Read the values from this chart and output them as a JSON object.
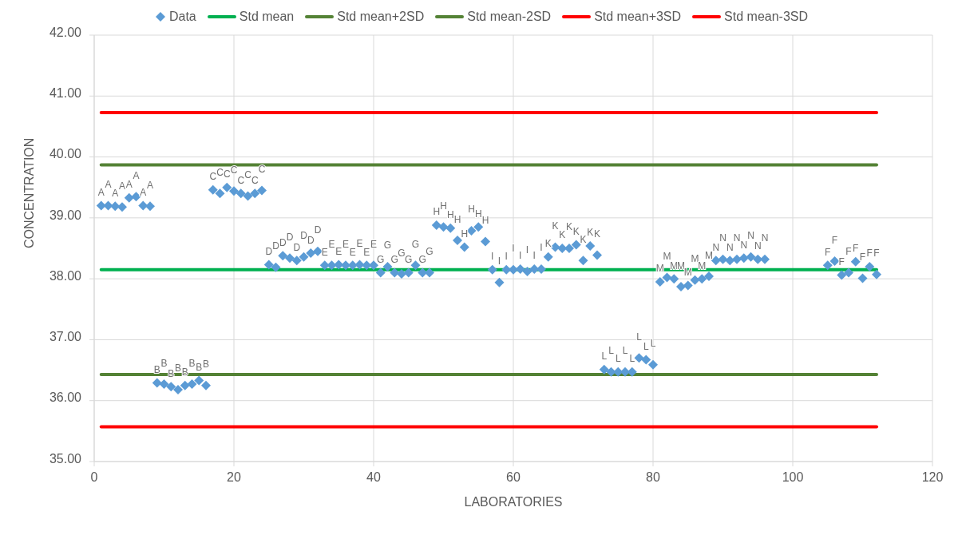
{
  "chart_data": {
    "type": "scatter",
    "xlabel": "LABORATORIES",
    "ylabel": "CONCENTRATION",
    "xlim": [
      0,
      120
    ],
    "xticks": [
      0,
      20,
      40,
      60,
      80,
      100,
      120
    ],
    "ylim": [
      35,
      42
    ],
    "yticks": [
      {
        "value": 35,
        "label": "35.00"
      },
      {
        "value": 36,
        "label": "36.00"
      },
      {
        "value": 37,
        "label": "37.00"
      },
      {
        "value": 38,
        "label": "38.00"
      },
      {
        "value": 39,
        "label": "39.00"
      },
      {
        "value": 40,
        "label": "40.00"
      },
      {
        "value": 41,
        "label": "41.00"
      },
      {
        "value": 42,
        "label": "42.00"
      }
    ],
    "grid": true,
    "legend": "top",
    "series": [
      {
        "name": "Data",
        "marker": "diamond",
        "color": "#5b9bd5",
        "x": [
          1,
          2,
          3,
          4,
          5,
          6,
          7,
          8,
          9,
          10,
          11,
          12,
          13,
          14,
          15,
          16,
          17,
          18,
          19,
          20,
          21,
          22,
          23,
          24,
          25,
          26,
          27,
          28,
          29,
          30,
          31,
          32,
          33,
          34,
          35,
          36,
          37,
          38,
          39,
          40,
          41,
          42,
          43,
          44,
          45,
          46,
          47,
          48,
          49,
          50,
          51,
          52,
          53,
          54,
          55,
          56,
          57,
          58,
          59,
          60,
          61,
          62,
          63,
          64,
          65,
          66,
          67,
          68,
          69,
          70,
          71,
          72,
          73,
          74,
          75,
          76,
          77,
          78,
          79,
          80,
          81,
          82,
          83,
          84,
          85,
          86,
          87,
          88,
          89,
          90,
          91,
          92,
          93,
          94,
          95,
          96,
          105,
          106,
          107,
          108,
          109,
          110,
          111,
          112
        ],
        "values": [
          39.2,
          39.2,
          39.19,
          39.18,
          39.33,
          39.35,
          39.2,
          39.19,
          36.29,
          36.27,
          36.23,
          36.18,
          36.25,
          36.27,
          36.33,
          36.25,
          39.46,
          39.4,
          39.5,
          39.44,
          39.4,
          39.36,
          39.4,
          39.45,
          38.23,
          38.19,
          38.38,
          38.34,
          38.3,
          38.36,
          38.42,
          38.45,
          38.22,
          38.22,
          38.23,
          38.22,
          38.22,
          38.23,
          38.22,
          38.22,
          38.1,
          38.2,
          38.1,
          38.08,
          38.1,
          38.22,
          38.1,
          38.1,
          38.88,
          38.85,
          38.83,
          38.63,
          38.52,
          38.79,
          38.85,
          38.61,
          38.15,
          37.94,
          38.15,
          38.15,
          38.16,
          38.12,
          38.16,
          38.16,
          38.36,
          38.52,
          38.5,
          38.5,
          38.56,
          38.3,
          38.54,
          38.39,
          36.51,
          36.47,
          36.47,
          36.47,
          36.47,
          36.7,
          36.67,
          36.59,
          37.95,
          38.02,
          38.0,
          37.87,
          37.89,
          37.98,
          38.0,
          38.04,
          38.3,
          38.32,
          38.3,
          38.32,
          38.34,
          38.36,
          38.32,
          38.32,
          38.22,
          38.29,
          38.06,
          38.1,
          38.28,
          38.01,
          38.2,
          38.07
        ],
        "value_labels": [
          "A",
          "A",
          "A",
          "A",
          "A",
          "A",
          "A",
          "A",
          "B",
          "B",
          "B",
          "B",
          "B",
          "B",
          "B",
          "B",
          "C",
          "C",
          "C",
          "C",
          "C",
          "C",
          "C",
          "C",
          "D",
          "D",
          "D",
          "D",
          "D",
          "D",
          "D",
          "D",
          "E",
          "E",
          "E",
          "E",
          "E",
          "E",
          "E",
          "E",
          "G",
          "G",
          "G",
          "G",
          "G",
          "G",
          "G",
          "G",
          "H",
          "H",
          "H",
          "H",
          "H",
          "H",
          "H",
          "H",
          "I",
          "I",
          "I",
          "I",
          "I",
          "I",
          "I",
          "I",
          "K",
          "K",
          "K",
          "K",
          "K",
          "K",
          "K",
          "K",
          "L",
          "L",
          "L",
          "L",
          "L",
          "L",
          "L",
          "L",
          "M",
          "M",
          "M",
          "M",
          "M",
          "M",
          "M",
          "M",
          "N",
          "N",
          "N",
          "N",
          "N",
          "N",
          "N",
          "N",
          "F",
          "F",
          "F",
          "F",
          "F",
          "F",
          "F",
          "F"
        ]
      },
      {
        "name": "Std mean",
        "type": "line",
        "color": "#00b050",
        "x": [
          1,
          112
        ],
        "values": [
          38.15,
          38.15
        ]
      },
      {
        "name": "Std mean+2SD",
        "type": "line",
        "color": "#548235",
        "x": [
          1,
          112
        ],
        "values": [
          39.87,
          39.87
        ]
      },
      {
        "name": "Std mean-2SD",
        "type": "line",
        "color": "#548235",
        "x": [
          1,
          112
        ],
        "values": [
          36.43,
          36.43
        ]
      },
      {
        "name": "Std mean+3SD",
        "type": "line",
        "color": "#ff0000",
        "x": [
          1,
          112
        ],
        "values": [
          40.73,
          40.73
        ]
      },
      {
        "name": "Std mean-3SD",
        "type": "line",
        "color": "#ff0000",
        "x": [
          1,
          112
        ],
        "values": [
          35.57,
          35.57
        ]
      }
    ]
  }
}
